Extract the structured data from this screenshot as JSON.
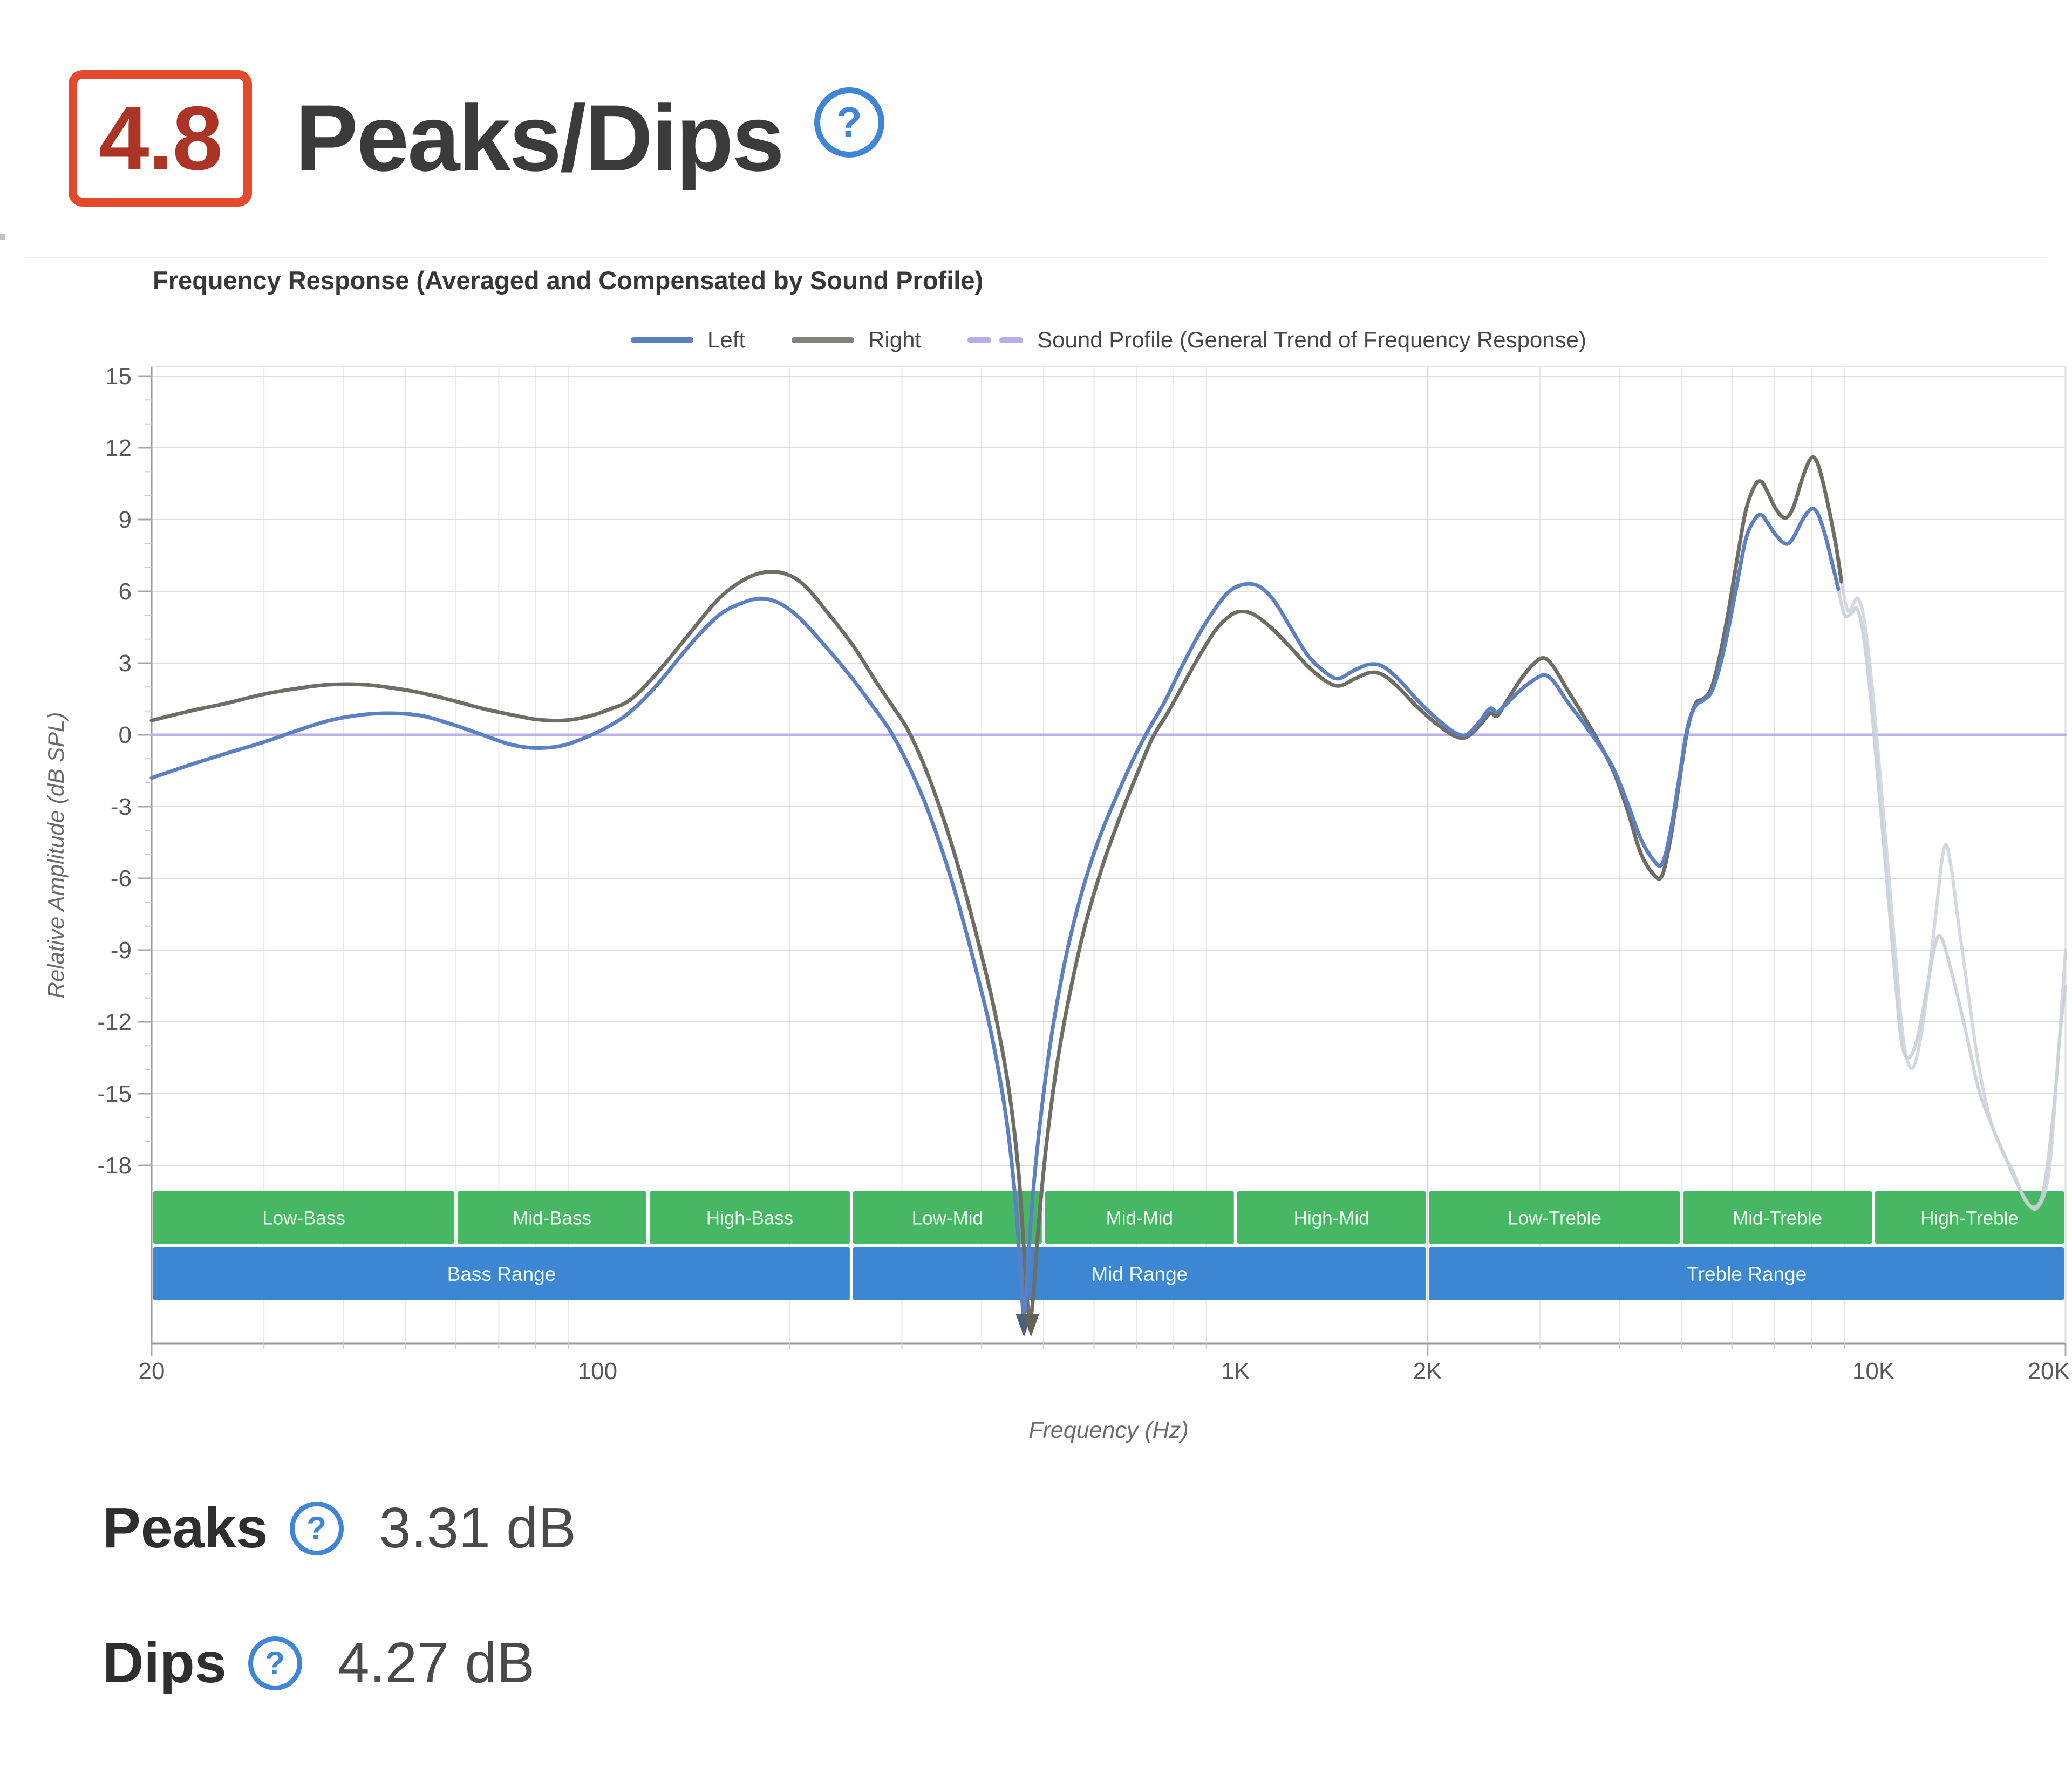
{
  "header": {
    "score": "4.8",
    "title": "Peaks/Dips",
    "help_icon": "?"
  },
  "chart_data": {
    "type": "line",
    "title": "Frequency Response (Averaged and Compensated by Sound Profile)",
    "xlabel": "Frequency (Hz)",
    "ylabel": "Relative Amplitude (dB SPL)",
    "x_scale": "log",
    "xlim": [
      20,
      20000
    ],
    "ylim": [
      -18,
      15
    ],
    "y_tick_step": 3,
    "grid": true,
    "legend_position": "top-center",
    "x_ticks": [
      {
        "value": 20,
        "label": "20"
      },
      {
        "value": 100,
        "label": "100"
      },
      {
        "value": 1000,
        "label": "1K"
      },
      {
        "value": 2000,
        "label": "2K"
      },
      {
        "value": 10000,
        "label": "10K"
      },
      {
        "value": 20000,
        "label": "20K"
      }
    ],
    "legend": [
      {
        "label": "Left",
        "color": "#5c80c2",
        "style": "solid"
      },
      {
        "label": "Right",
        "color": "#83837b",
        "style": "solid"
      },
      {
        "label": "Sound Profile (General Trend of Frequency Response)",
        "color": "#b7ade8",
        "style": "dashed"
      }
    ],
    "bands": {
      "green_color": "#46b863",
      "blue_color": "#3d86d3",
      "sub_bands": [
        {
          "label": "Low-Bass",
          "from": 20,
          "to": 60
        },
        {
          "label": "Mid-Bass",
          "from": 60,
          "to": 120
        },
        {
          "label": "High-Bass",
          "from": 120,
          "to": 250
        },
        {
          "label": "Low-Mid",
          "from": 250,
          "to": 500
        },
        {
          "label": "Mid-Mid",
          "from": 500,
          "to": 1000
        },
        {
          "label": "High-Mid",
          "from": 1000,
          "to": 2000
        },
        {
          "label": "Low-Treble",
          "from": 2000,
          "to": 5000
        },
        {
          "label": "Mid-Treble",
          "from": 5000,
          "to": 10000
        },
        {
          "label": "High-Treble",
          "from": 10000,
          "to": 20000
        }
      ],
      "ranges": [
        {
          "label": "Bass Range",
          "from": 20,
          "to": 250
        },
        {
          "label": "Mid Range",
          "from": 250,
          "to": 2000
        },
        {
          "label": "Treble Range",
          "from": 2000,
          "to": 20000
        }
      ]
    },
    "series": [
      {
        "name": "Sound Profile",
        "color": "#b7ade8",
        "width": 5,
        "opacity": 0.95,
        "points": [
          [
            20,
            0
          ],
          [
            20000,
            0
          ]
        ]
      },
      {
        "name": "Left (unscored treble)",
        "color": "#c6ccd5",
        "width": 6,
        "opacity": 0.85,
        "points": [
          [
            8810,
            6.1
          ],
          [
            9010,
            5.0
          ],
          [
            9260,
            5.1
          ],
          [
            9410,
            5.3
          ],
          [
            9610,
            4.4
          ],
          [
            9860,
            2.0
          ],
          [
            10110,
            -1.2
          ],
          [
            10410,
            -5.0
          ],
          [
            10760,
            -9.5
          ],
          [
            11060,
            -12.8
          ],
          [
            11360,
            -13.5
          ],
          [
            11710,
            -12.7
          ],
          [
            12110,
            -10.7
          ],
          [
            12460,
            -8.9
          ],
          [
            12710,
            -8.4
          ],
          [
            13010,
            -9.1
          ],
          [
            13510,
            -10.8
          ],
          [
            14010,
            -12.6
          ],
          [
            14610,
            -14.8
          ],
          [
            15310,
            -16.3
          ],
          [
            16010,
            -17.5
          ],
          [
            16810,
            -18.8
          ],
          [
            17610,
            -19.7
          ],
          [
            18410,
            -19.2
          ],
          [
            19110,
            -16.0
          ],
          [
            19610,
            -12.5
          ],
          [
            20000,
            -10.5
          ]
        ]
      },
      {
        "name": "Right (unscored treble)",
        "color": "#cdd2d9",
        "width": 6,
        "opacity": 0.85,
        "points": [
          [
            8910,
            6.4
          ],
          [
            9110,
            5.2
          ],
          [
            9310,
            5.5
          ],
          [
            9460,
            5.7
          ],
          [
            9660,
            4.9
          ],
          [
            9910,
            2.5
          ],
          [
            10160,
            -0.6
          ],
          [
            10460,
            -4.5
          ],
          [
            10810,
            -9.0
          ],
          [
            11110,
            -12.5
          ],
          [
            11410,
            -13.9
          ],
          [
            11710,
            -13.4
          ],
          [
            12110,
            -11.0
          ],
          [
            12510,
            -7.6
          ],
          [
            12910,
            -4.7
          ],
          [
            13210,
            -5.4
          ],
          [
            13610,
            -8.0
          ],
          [
            14110,
            -11.0
          ],
          [
            14610,
            -13.8
          ],
          [
            15210,
            -16.0
          ],
          [
            15910,
            -17.4
          ],
          [
            16510,
            -18.2
          ],
          [
            17210,
            -19.3
          ],
          [
            18010,
            -19.8
          ],
          [
            18810,
            -18.4
          ],
          [
            19410,
            -14.0
          ],
          [
            20000,
            -9.0
          ]
        ]
      },
      {
        "name": "Right",
        "color": "#6e6e64",
        "width": 7,
        "opacity": 1,
        "points": [
          [
            20,
            0.6
          ],
          [
            23,
            1.0
          ],
          [
            26,
            1.3
          ],
          [
            30,
            1.7
          ],
          [
            34,
            1.95
          ],
          [
            38,
            2.1
          ],
          [
            43,
            2.1
          ],
          [
            48,
            1.95
          ],
          [
            53,
            1.75
          ],
          [
            59,
            1.45
          ],
          [
            66,
            1.1
          ],
          [
            73,
            0.85
          ],
          [
            80,
            0.65
          ],
          [
            88,
            0.6
          ],
          [
            96,
            0.75
          ],
          [
            104,
            1.05
          ],
          [
            113,
            1.5
          ],
          [
            125,
            2.7
          ],
          [
            140,
            4.3
          ],
          [
            155,
            5.7
          ],
          [
            170,
            6.5
          ],
          [
            183,
            6.8
          ],
          [
            196,
            6.75
          ],
          [
            210,
            6.3
          ],
          [
            228,
            5.2
          ],
          [
            252,
            3.7
          ],
          [
            272,
            2.3
          ],
          [
            290,
            1.2
          ],
          [
            308,
            0.1
          ],
          [
            332,
            -1.9
          ],
          [
            362,
            -4.9
          ],
          [
            392,
            -8.3
          ],
          [
            418,
            -11.4
          ],
          [
            440,
            -14.6
          ],
          [
            456,
            -18.0
          ],
          [
            466,
            -21.5
          ],
          [
            472,
            -23.8
          ],
          [
            478,
            -24.3
          ],
          [
            484,
            -22.8
          ],
          [
            493,
            -20.0
          ],
          [
            507,
            -16.8
          ],
          [
            527,
            -13.5
          ],
          [
            552,
            -10.6
          ],
          [
            582,
            -7.9
          ],
          [
            622,
            -5.3
          ],
          [
            662,
            -3.3
          ],
          [
            702,
            -1.6
          ],
          [
            742,
            -0.1
          ],
          [
            782,
            0.9
          ],
          [
            832,
            2.2
          ],
          [
            882,
            3.4
          ],
          [
            932,
            4.4
          ],
          [
            977,
            4.95
          ],
          [
            1015,
            5.15
          ],
          [
            1065,
            5.05
          ],
          [
            1135,
            4.5
          ],
          [
            1225,
            3.6
          ],
          [
            1300,
            2.85
          ],
          [
            1385,
            2.25
          ],
          [
            1455,
            2.05
          ],
          [
            1540,
            2.35
          ],
          [
            1625,
            2.6
          ],
          [
            1705,
            2.5
          ],
          [
            1805,
            1.95
          ],
          [
            1905,
            1.3
          ],
          [
            2005,
            0.75
          ],
          [
            2105,
            0.3
          ],
          [
            2205,
            -0.05
          ],
          [
            2300,
            -0.1
          ],
          [
            2405,
            0.35
          ],
          [
            2505,
            0.9
          ],
          [
            2570,
            0.8
          ],
          [
            2660,
            1.4
          ],
          [
            2805,
            2.35
          ],
          [
            2955,
            3.05
          ],
          [
            3055,
            3.2
          ],
          [
            3160,
            2.8
          ],
          [
            3310,
            1.9
          ],
          [
            3510,
            0.8
          ],
          [
            3710,
            -0.3
          ],
          [
            3910,
            -1.5
          ],
          [
            4110,
            -3.1
          ],
          [
            4310,
            -4.9
          ],
          [
            4510,
            -5.8
          ],
          [
            4660,
            -5.9
          ],
          [
            4810,
            -4.3
          ],
          [
            4960,
            -2.0
          ],
          [
            5110,
            0.2
          ],
          [
            5260,
            1.3
          ],
          [
            5410,
            1.5
          ],
          [
            5560,
            1.9
          ],
          [
            5710,
            3.0
          ],
          [
            5910,
            5.0
          ],
          [
            6110,
            7.3
          ],
          [
            6310,
            9.4
          ],
          [
            6510,
            10.4
          ],
          [
            6660,
            10.6
          ],
          [
            6810,
            10.2
          ],
          [
            7010,
            9.5
          ],
          [
            7210,
            9.1
          ],
          [
            7360,
            9.15
          ],
          [
            7510,
            9.6
          ],
          [
            7710,
            10.6
          ],
          [
            7910,
            11.4
          ],
          [
            8060,
            11.6
          ],
          [
            8210,
            11.2
          ],
          [
            8410,
            10.1
          ],
          [
            8710,
            8.1
          ],
          [
            8910,
            6.4
          ]
        ]
      },
      {
        "name": "Left",
        "color": "#5c80c2",
        "width": 7,
        "opacity": 1,
        "points": [
          [
            20,
            -1.8
          ],
          [
            23,
            -1.25
          ],
          [
            26,
            -0.8
          ],
          [
            30,
            -0.3
          ],
          [
            34,
            0.2
          ],
          [
            38,
            0.6
          ],
          [
            43,
            0.85
          ],
          [
            48,
            0.9
          ],
          [
            53,
            0.8
          ],
          [
            59,
            0.45
          ],
          [
            66,
            0.0
          ],
          [
            73,
            -0.4
          ],
          [
            80,
            -0.55
          ],
          [
            88,
            -0.45
          ],
          [
            96,
            -0.1
          ],
          [
            104,
            0.35
          ],
          [
            113,
            1.0
          ],
          [
            125,
            2.2
          ],
          [
            140,
            3.8
          ],
          [
            155,
            5.0
          ],
          [
            168,
            5.5
          ],
          [
            180,
            5.7
          ],
          [
            193,
            5.5
          ],
          [
            207,
            4.9
          ],
          [
            226,
            3.8
          ],
          [
            250,
            2.4
          ],
          [
            270,
            1.2
          ],
          [
            287,
            0.2
          ],
          [
            305,
            -1.1
          ],
          [
            330,
            -3.2
          ],
          [
            360,
            -6.2
          ],
          [
            390,
            -9.6
          ],
          [
            415,
            -12.6
          ],
          [
            437,
            -16.0
          ],
          [
            452,
            -19.5
          ],
          [
            461,
            -22.8
          ],
          [
            466,
            -24.3
          ],
          [
            472,
            -22.5
          ],
          [
            481,
            -19.3
          ],
          [
            496,
            -15.8
          ],
          [
            516,
            -12.4
          ],
          [
            542,
            -9.3
          ],
          [
            574,
            -6.6
          ],
          [
            612,
            -4.3
          ],
          [
            655,
            -2.4
          ],
          [
            695,
            -0.9
          ],
          [
            730,
            0.2
          ],
          [
            775,
            1.4
          ],
          [
            822,
            2.8
          ],
          [
            872,
            4.1
          ],
          [
            925,
            5.2
          ],
          [
            978,
            6.0
          ],
          [
            1035,
            6.3
          ],
          [
            1090,
            6.2
          ],
          [
            1150,
            5.6
          ],
          [
            1225,
            4.4
          ],
          [
            1300,
            3.3
          ],
          [
            1385,
            2.6
          ],
          [
            1450,
            2.35
          ],
          [
            1535,
            2.7
          ],
          [
            1625,
            2.95
          ],
          [
            1705,
            2.85
          ],
          [
            1805,
            2.3
          ],
          [
            1905,
            1.6
          ],
          [
            2005,
            1.0
          ],
          [
            2105,
            0.5
          ],
          [
            2205,
            0.1
          ],
          [
            2300,
            0.0
          ],
          [
            2405,
            0.5
          ],
          [
            2505,
            1.1
          ],
          [
            2570,
            0.95
          ],
          [
            2660,
            1.3
          ],
          [
            2805,
            1.9
          ],
          [
            2955,
            2.35
          ],
          [
            3055,
            2.5
          ],
          [
            3160,
            2.2
          ],
          [
            3310,
            1.4
          ],
          [
            3510,
            0.5
          ],
          [
            3710,
            -0.4
          ],
          [
            3910,
            -1.4
          ],
          [
            4110,
            -2.8
          ],
          [
            4310,
            -4.3
          ],
          [
            4510,
            -5.2
          ],
          [
            4660,
            -5.4
          ],
          [
            4810,
            -4.0
          ],
          [
            4960,
            -1.8
          ],
          [
            5110,
            0.3
          ],
          [
            5260,
            1.2
          ],
          [
            5410,
            1.45
          ],
          [
            5560,
            1.75
          ],
          [
            5710,
            2.6
          ],
          [
            5910,
            4.3
          ],
          [
            6110,
            6.3
          ],
          [
            6310,
            8.2
          ],
          [
            6510,
            9.0
          ],
          [
            6660,
            9.2
          ],
          [
            6810,
            8.9
          ],
          [
            7010,
            8.4
          ],
          [
            7210,
            8.05
          ],
          [
            7360,
            8.0
          ],
          [
            7510,
            8.3
          ],
          [
            7710,
            8.9
          ],
          [
            7910,
            9.35
          ],
          [
            8060,
            9.45
          ],
          [
            8210,
            9.15
          ],
          [
            8410,
            8.3
          ],
          [
            8610,
            7.2
          ],
          [
            8810,
            6.1
          ]
        ]
      }
    ],
    "offscale_markers": [
      {
        "freq": 466,
        "color": "#4e5f82"
      },
      {
        "freq": 478,
        "color": "#63635c"
      }
    ]
  },
  "stats": [
    {
      "label": "Peaks",
      "help_icon": "?",
      "value": "3.31 dB"
    },
    {
      "label": "Dips",
      "help_icon": "?",
      "value": "4.27 dB"
    }
  ]
}
